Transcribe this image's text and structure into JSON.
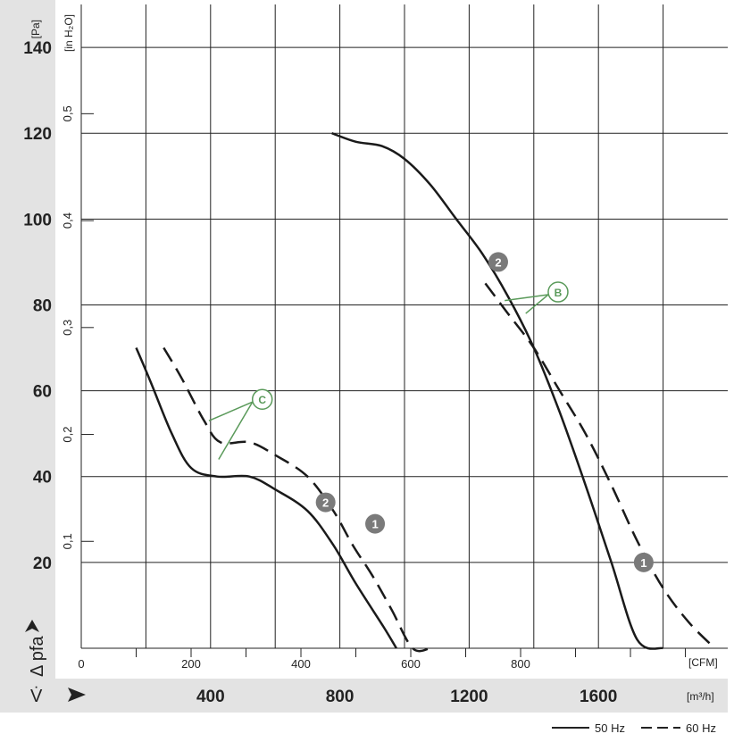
{
  "chart_data": {
    "type": "line",
    "title": "",
    "xlabel": "V̇",
    "ylabel": "Δ pfa",
    "x_unit": "[m³/h]",
    "x2_unit": "[CFM]",
    "y_unit": "[Pa]",
    "y2_unit": "[in H₂O]",
    "xlim": [
      0,
      2000
    ],
    "ylim": [
      0,
      150
    ],
    "grid": true,
    "x_ticks": [
      "400",
      "800",
      "1200",
      "1600"
    ],
    "x_tick_values": [
      400,
      800,
      1200,
      1600
    ],
    "x2_ticks": [
      "0",
      "200",
      "400",
      "600",
      "800"
    ],
    "x2_tick_values": [
      0,
      200,
      400,
      600,
      800
    ],
    "y_ticks": [
      "20",
      "40",
      "60",
      "80",
      "100",
      "120",
      "140"
    ],
    "y_tick_values": [
      20,
      40,
      60,
      80,
      100,
      120,
      140
    ],
    "y2_ticks": [
      "0,1",
      "0,2",
      "0,3",
      "0,4",
      "0,5"
    ],
    "y2_tick_values": [
      0.1,
      0.2,
      0.3,
      0.4,
      0.5
    ],
    "series": [
      {
        "name": "50 Hz",
        "curve": "1",
        "style": "solid",
        "x": [
          170,
          215,
          280,
          340,
          420,
          520,
          600,
          700,
          780,
          850,
          935,
          975
        ],
        "y": [
          70,
          62,
          50,
          42,
          40,
          40,
          37,
          32,
          24,
          15,
          5,
          0
        ]
      },
      {
        "name": "60 Hz",
        "curve": "1",
        "style": "dashed",
        "x": [
          255,
          310,
          380,
          430,
          520,
          600,
          700,
          780,
          840,
          900,
          960,
          1025,
          1080
        ],
        "y": [
          70,
          63,
          53,
          48,
          48,
          45,
          40,
          32,
          24,
          17,
          9,
          0,
          0
        ]
      },
      {
        "name": "50 Hz",
        "curve": "2",
        "style": "solid",
        "x": [
          775,
          850,
          930,
          1000,
          1080,
          1160,
          1240,
          1320,
          1400,
          1480,
          1560,
          1640,
          1720,
          1800
        ],
        "y": [
          120,
          118,
          117,
          114,
          108,
          100,
          92,
          82,
          70,
          55,
          38,
          20,
          2,
          0
        ]
      },
      {
        "name": "60 Hz",
        "curve": "2",
        "style": "dashed",
        "x": [
          1250,
          1320,
          1400,
          1480,
          1560,
          1640,
          1720,
          1800,
          1880,
          1960
        ],
        "y": [
          85,
          78,
          70,
          60,
          50,
          38,
          25,
          14,
          6,
          0
        ]
      }
    ],
    "curve_markers": [
      "1",
      "2",
      "1",
      "2"
    ],
    "annotations": [
      "C",
      "B"
    ],
    "legend": [
      "50 Hz",
      "60 Hz"
    ],
    "legend_position": "bottom-right"
  }
}
